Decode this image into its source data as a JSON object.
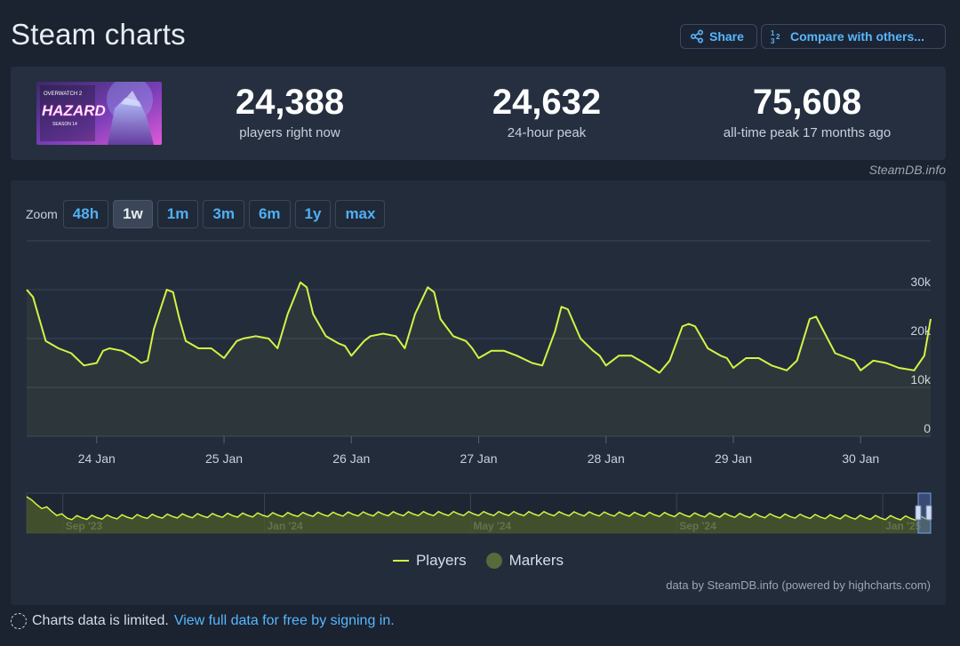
{
  "page": {
    "title": "Steam charts",
    "share_label": "Share",
    "compare_label": "Compare with others...",
    "credit_top": "SteamDB.info",
    "credit_bottom": "data by SteamDB.info (powered by highcharts.com)",
    "notice_text": "Charts data is limited.",
    "notice_link": "View full data for free by signing in."
  },
  "stats": {
    "current": {
      "value": "24,388",
      "label": "players right now"
    },
    "peak_24h": {
      "value": "24,632",
      "label": "24-hour peak"
    },
    "peak_all_time": {
      "value": "75,608",
      "label": "all-time peak 17 months ago"
    }
  },
  "game_art": {
    "brand": "OVERWATCH 2",
    "name": "HAZARD",
    "season": "SEASON 14"
  },
  "zoom": {
    "label": "Zoom",
    "options": [
      "48h",
      "1w",
      "1m",
      "3m",
      "6m",
      "1y",
      "max"
    ],
    "selected": "1w"
  },
  "legend": {
    "players": "Players",
    "markers": "Markers"
  },
  "colors": {
    "line": "#d6f344",
    "accent": "#57b7ff",
    "background": "#1b2230",
    "card": "#232c3b"
  },
  "chart_data": {
    "type": "line",
    "series": [
      {
        "name": "Players",
        "x": [
          23.45,
          23.5,
          23.55,
          23.6,
          23.7,
          23.8,
          23.9,
          24.0,
          24.05,
          24.1,
          24.2,
          24.3,
          24.35,
          24.4,
          24.45,
          24.55,
          24.6,
          24.65,
          24.7,
          24.8,
          24.9,
          24.95,
          25.0,
          25.1,
          25.15,
          25.25,
          25.35,
          25.42,
          25.5,
          25.6,
          25.65,
          25.7,
          25.8,
          25.9,
          25.95,
          26.0,
          26.1,
          26.15,
          26.25,
          26.35,
          26.42,
          26.5,
          26.6,
          26.65,
          26.7,
          26.8,
          26.9,
          26.95,
          27.0,
          27.1,
          27.2,
          27.3,
          27.42,
          27.5,
          27.6,
          27.65,
          27.7,
          27.8,
          27.9,
          27.95,
          28.0,
          28.1,
          28.2,
          28.3,
          28.42,
          28.5,
          28.6,
          28.65,
          28.7,
          28.8,
          28.9,
          28.95,
          29.0,
          29.1,
          29.2,
          29.3,
          29.42,
          29.5,
          29.6,
          29.65,
          29.7,
          29.8,
          29.9,
          29.95,
          30.0,
          30.1,
          30.2,
          30.3,
          30.42,
          30.5,
          30.55
        ],
        "values": [
          30000,
          28500,
          24000,
          19500,
          18000,
          17000,
          14500,
          15000,
          17500,
          18000,
          17500,
          16000,
          15000,
          15500,
          22000,
          30000,
          29500,
          24000,
          19500,
          18000,
          18000,
          17000,
          16000,
          19500,
          20000,
          20500,
          20000,
          18000,
          25000,
          31500,
          30500,
          25000,
          20500,
          19000,
          18500,
          16500,
          19500,
          20500,
          21000,
          20500,
          18000,
          25000,
          30500,
          29500,
          24000,
          20500,
          19500,
          18000,
          16000,
          17500,
          17500,
          16500,
          15000,
          14500,
          21500,
          26500,
          26000,
          20000,
          17500,
          16500,
          14500,
          16500,
          16500,
          15000,
          13000,
          15500,
          22500,
          23000,
          22500,
          18000,
          16500,
          16000,
          14000,
          16000,
          16000,
          14500,
          13500,
          15500,
          24000,
          24500,
          22000,
          17000,
          16000,
          15500,
          13500,
          15500,
          15000,
          14000,
          13500,
          16500,
          24000
        ]
      }
    ],
    "x_tick_labels": [
      "24 Jan",
      "25 Jan",
      "26 Jan",
      "27 Jan",
      "28 Jan",
      "29 Jan",
      "30 Jan"
    ],
    "x_ticks": [
      24,
      25,
      26,
      27,
      28,
      29,
      30
    ],
    "xlim": [
      23.45,
      30.55
    ],
    "y_tick_labels": [
      "0",
      "10k",
      "20k",
      "30k"
    ],
    "y_ticks": [
      0,
      10000,
      20000,
      30000
    ],
    "ylim": [
      0,
      40000
    ],
    "grid": true,
    "legend_position": "bottom-center",
    "navigator": {
      "tick_labels": [
        "Sep '23",
        "Jan '24",
        "May '24",
        "Sep '24",
        "Jan '25"
      ],
      "tick_positions": [
        0.04,
        0.263,
        0.491,
        0.719,
        0.947
      ]
    }
  }
}
